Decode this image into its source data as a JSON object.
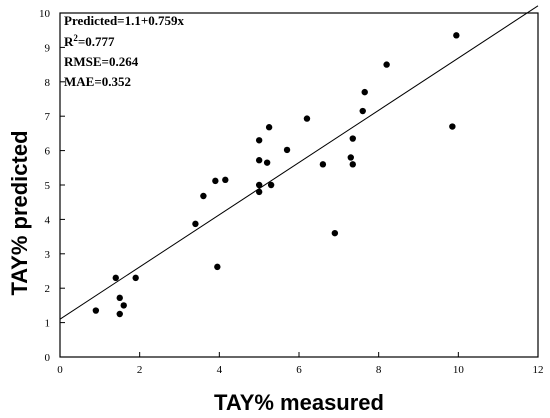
{
  "chart_data": {
    "type": "scatter",
    "xlabel": "TAY% measured",
    "ylabel": "TAY% predicted",
    "xlim": [
      0,
      12
    ],
    "ylim": [
      0,
      10
    ],
    "xticks": [
      "0",
      "2",
      "4",
      "6",
      "8",
      "10",
      "12"
    ],
    "yticks": [
      "0",
      "1",
      "2",
      "3",
      "4",
      "5",
      "6",
      "7",
      "8",
      "9",
      "10"
    ],
    "grid": false,
    "stats": {
      "equation": "Predicted=1.1+0.759x",
      "r2_label": "R",
      "r2_sup": "2",
      "r2_value": "=0.777",
      "rmse": "RMSE=0.264",
      "mae": "MAE=0.352"
    },
    "fit_line": {
      "intercept": 1.1,
      "slope": 0.759
    },
    "points": [
      {
        "x": 0.9,
        "y": 1.35
      },
      {
        "x": 1.4,
        "y": 2.3
      },
      {
        "x": 1.5,
        "y": 1.72
      },
      {
        "x": 1.6,
        "y": 1.5
      },
      {
        "x": 1.5,
        "y": 1.25
      },
      {
        "x": 1.9,
        "y": 2.3
      },
      {
        "x": 3.4,
        "y": 3.87
      },
      {
        "x": 3.6,
        "y": 4.68
      },
      {
        "x": 3.9,
        "y": 5.12
      },
      {
        "x": 4.15,
        "y": 5.15
      },
      {
        "x": 3.95,
        "y": 2.62
      },
      {
        "x": 5.0,
        "y": 6.3
      },
      {
        "x": 5.0,
        "y": 5.72
      },
      {
        "x": 5.0,
        "y": 5.0
      },
      {
        "x": 5.0,
        "y": 4.8
      },
      {
        "x": 5.25,
        "y": 6.68
      },
      {
        "x": 5.2,
        "y": 5.65
      },
      {
        "x": 5.3,
        "y": 5.0
      },
      {
        "x": 5.7,
        "y": 6.02
      },
      {
        "x": 6.2,
        "y": 6.93
      },
      {
        "x": 6.6,
        "y": 5.6
      },
      {
        "x": 6.9,
        "y": 3.6
      },
      {
        "x": 7.3,
        "y": 5.8
      },
      {
        "x": 7.35,
        "y": 5.6
      },
      {
        "x": 7.35,
        "y": 6.35
      },
      {
        "x": 7.6,
        "y": 7.15
      },
      {
        "x": 7.65,
        "y": 7.7
      },
      {
        "x": 8.2,
        "y": 8.5
      },
      {
        "x": 9.85,
        "y": 6.7
      },
      {
        "x": 9.95,
        "y": 9.35
      }
    ]
  }
}
